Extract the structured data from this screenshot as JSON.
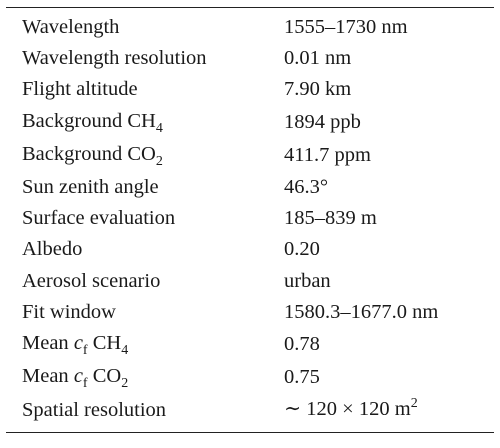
{
  "table": {
    "rows": [
      {
        "label": "Wavelength",
        "value": "1555–1730 nm"
      },
      {
        "label": "Wavelength resolution",
        "value": "0.01 nm"
      },
      {
        "label": "Flight altitude",
        "value": "7.90 km"
      },
      {
        "label_main": "Background CH",
        "label_sub": "4",
        "value": "1894 ppb"
      },
      {
        "label_main": "Background CO",
        "label_sub": "2",
        "value": "411.7 ppm"
      },
      {
        "label": "Sun zenith angle",
        "value": "46.3°"
      },
      {
        "label": "Surface evaluation",
        "value": "185–839 m"
      },
      {
        "label": "Albedo",
        "value": "0.20"
      },
      {
        "label": "Aerosol scenario",
        "value": "urban"
      },
      {
        "label": "Fit window",
        "value": "1580.3–1677.0 nm"
      },
      {
        "label_pre": "Mean ",
        "label_var": "c",
        "label_var_sub": "f",
        "label_post": " CH",
        "label_post_sub": "4",
        "value": "0.78"
      },
      {
        "label_pre": "Mean ",
        "label_var": "c",
        "label_var_sub": "f",
        "label_post": " CO",
        "label_post_sub": "2",
        "value": "0.75"
      },
      {
        "label": "Spatial resolution",
        "value_main": "∼ 120 × 120 m",
        "value_sup": "2"
      }
    ]
  }
}
